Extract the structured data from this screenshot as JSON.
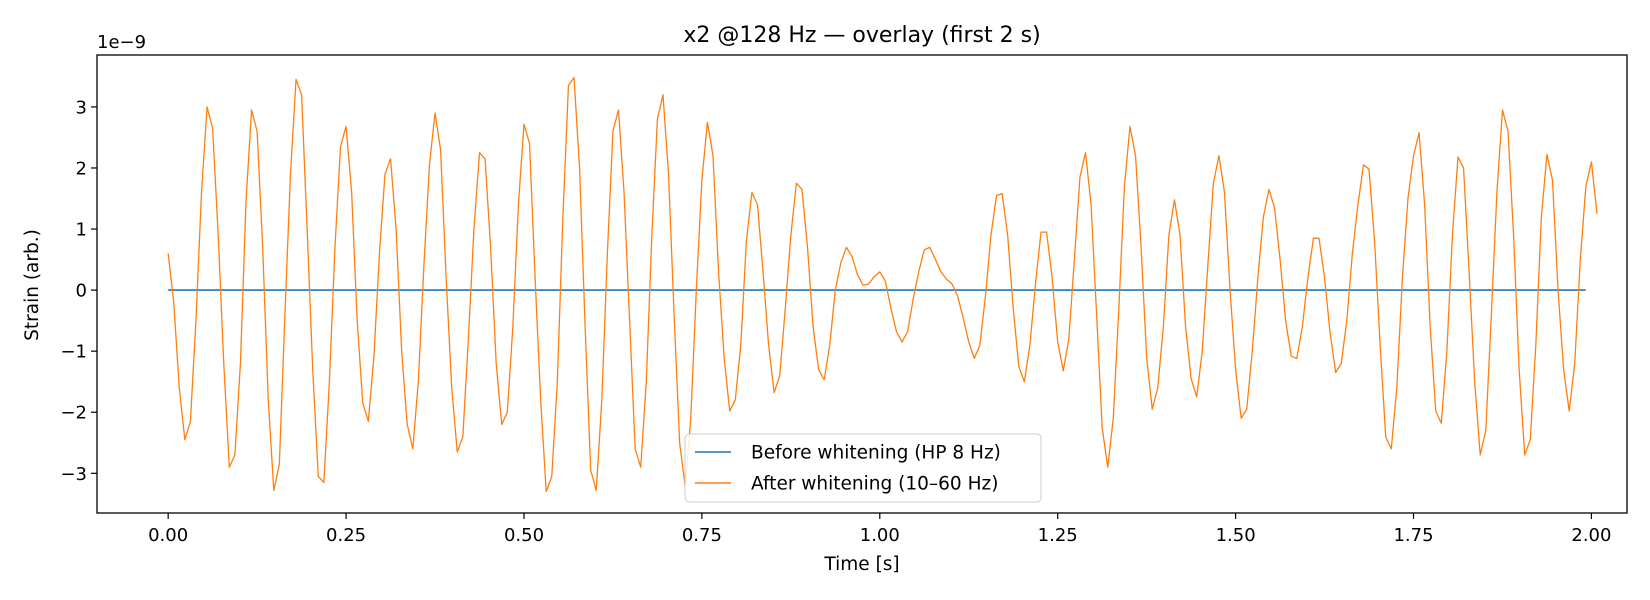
{
  "chart_data": {
    "type": "line",
    "title": "x2 @128 Hz — overlay (first 2 s)",
    "xlabel": "Time [s]",
    "ylabel": "Strain (arb.)",
    "offset_label": "1e−9",
    "xlim": [
      -0.1,
      2.05
    ],
    "ylim": [
      -3.65,
      3.85
    ],
    "xticks": [
      0.0,
      0.25,
      0.5,
      0.75,
      1.0,
      1.25,
      1.5,
      1.75,
      2.0
    ],
    "xtick_labels": [
      "0.00",
      "0.25",
      "0.50",
      "0.75",
      "1.00",
      "1.25",
      "1.50",
      "1.75",
      "2.00"
    ],
    "yticks": [
      -3,
      -2,
      -1,
      0,
      1,
      2,
      3
    ],
    "ytick_labels": [
      "−3",
      "−2",
      "−1",
      "0",
      "1",
      "2",
      "3"
    ],
    "grid": false,
    "legend_position": "bottom-center",
    "sample_rate_hz": 128,
    "series": [
      {
        "name": "Before whitening (HP 8 Hz)",
        "color": "#1f77b4",
        "x": [
          0.0,
          1.992
        ],
        "y": [
          0.0,
          0.0
        ]
      },
      {
        "name": "After whitening (10–60 Hz)",
        "color": "#ff7f0e",
        "x_start": 0.0,
        "x_step": 0.0078125,
        "y": [
          0.6,
          -0.2,
          -1.6,
          -2.45,
          -2.15,
          -0.5,
          1.6,
          3.0,
          2.65,
          0.9,
          -1.2,
          -2.9,
          -2.7,
          -1.2,
          1.45,
          2.95,
          2.6,
          0.7,
          -1.8,
          -3.28,
          -2.85,
          -0.4,
          1.9,
          3.45,
          3.2,
          1.0,
          -1.3,
          -3.05,
          -3.15,
          -1.5,
          0.7,
          2.35,
          2.68,
          1.6,
          -0.5,
          -1.85,
          -2.15,
          -1.1,
          0.6,
          1.9,
          2.15,
          1.0,
          -1.0,
          -2.2,
          -2.6,
          -1.5,
          0.4,
          2.05,
          2.9,
          2.3,
          0.2,
          -1.6,
          -2.65,
          -2.4,
          -0.8,
          1.0,
          2.25,
          2.15,
          0.7,
          -1.2,
          -2.2,
          -2.0,
          -0.6,
          1.4,
          2.72,
          2.4,
          0.2,
          -1.8,
          -3.3,
          -3.05,
          -1.5,
          1.2,
          3.35,
          3.48,
          2.0,
          -0.6,
          -2.95,
          -3.28,
          -1.8,
          0.6,
          2.6,
          2.95,
          1.6,
          -0.5,
          -2.6,
          -2.9,
          -1.5,
          0.9,
          2.8,
          3.2,
          1.9,
          -0.4,
          -2.5,
          -3.22,
          -2.1,
          0.0,
          1.8,
          2.75,
          2.2,
          0.3,
          -1.1,
          -1.98,
          -1.8,
          -0.9,
          0.8,
          1.6,
          1.4,
          0.3,
          -0.9,
          -1.68,
          -1.4,
          -0.3,
          0.9,
          1.75,
          1.65,
          0.7,
          -0.6,
          -1.3,
          -1.47,
          -0.9,
          0.0,
          0.45,
          0.7,
          0.55,
          0.25,
          0.08,
          0.1,
          0.22,
          0.3,
          0.15,
          -0.3,
          -0.68,
          -0.85,
          -0.68,
          -0.15,
          0.3,
          0.66,
          0.7,
          0.5,
          0.3,
          0.18,
          0.1,
          -0.1,
          -0.45,
          -0.85,
          -1.12,
          -0.9,
          -0.1,
          0.9,
          1.55,
          1.58,
          0.9,
          -0.3,
          -1.25,
          -1.5,
          -0.9,
          0.1,
          0.95,
          0.95,
          0.2,
          -0.85,
          -1.32,
          -0.8,
          0.5,
          1.85,
          2.25,
          1.4,
          -0.4,
          -2.25,
          -2.9,
          -2.1,
          -0.3,
          1.7,
          2.68,
          2.2,
          0.7,
          -1.1,
          -1.95,
          -1.6,
          -0.6,
          0.9,
          1.48,
          0.9,
          -0.6,
          -1.45,
          -1.75,
          -1.0,
          0.4,
          1.75,
          2.2,
          1.6,
          0.0,
          -1.3,
          -2.1,
          -1.95,
          -1.0,
          0.2,
          1.2,
          1.65,
          1.35,
          0.5,
          -0.5,
          -1.08,
          -1.12,
          -0.6,
          0.2,
          0.85,
          0.85,
          0.2,
          -0.7,
          -1.35,
          -1.2,
          -0.5,
          0.6,
          1.4,
          2.05,
          1.98,
          0.8,
          -0.9,
          -2.4,
          -2.6,
          -1.6,
          0.2,
          1.5,
          2.2,
          2.58,
          1.4,
          -0.6,
          -1.98,
          -2.18,
          -1.0,
          0.9,
          2.18,
          2.0,
          0.3,
          -1.5,
          -2.7,
          -2.3,
          -0.4,
          1.6,
          2.95,
          2.6,
          0.9,
          -1.3,
          -2.7,
          -2.45,
          -0.9,
          1.2,
          2.22,
          1.8,
          0.0,
          -1.3,
          -1.98,
          -1.2,
          0.5,
          1.7,
          2.1,
          1.25
        ]
      }
    ]
  }
}
